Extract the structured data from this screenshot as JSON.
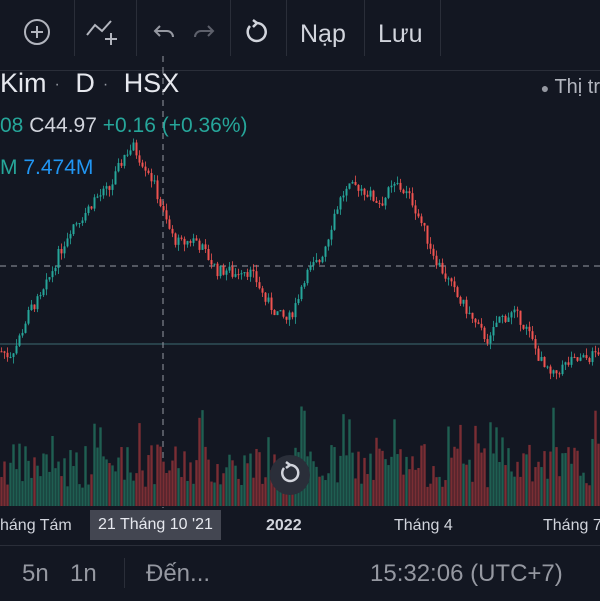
{
  "toolbar": {
    "add_label": "Thêm",
    "undo_label": "Hoàn tác",
    "load_label": "Nạp",
    "save_label": "Lưu"
  },
  "symbol": {
    "name": "Kim",
    "interval": "D",
    "exchange": "HSX",
    "market_status": "Thị tr"
  },
  "legend": {
    "ohlc_prefix": "08",
    "close": "C44.97",
    "change": "+0.16 (+0.36%)",
    "volume_prefix": "M",
    "volume": "7.474M"
  },
  "time_axis": {
    "labels": [
      "háng Tám",
      "2022",
      "Tháng 4",
      "Tháng 7"
    ],
    "crosshair_date": "21 Tháng 10 '21"
  },
  "bottom_bar": {
    "range_5d": "5n",
    "range_1d": "1n",
    "goto": "Đến...",
    "clock": "15:32:06 (UTC+7)"
  },
  "colors": {
    "background": "#131722",
    "up": "#26a69a",
    "down": "#ef5350",
    "volume_up": "#1f5f52",
    "volume_down": "#7a2e34",
    "crosshair": "#9598a1"
  },
  "chart_data": {
    "type": "candlestick",
    "title": "",
    "x_start": "2021-08-09",
    "x_end": "2022-07-20",
    "close_path": [
      30.5,
      30.2,
      31,
      32.5,
      33.8,
      34.2,
      35.5,
      37,
      38.2,
      39.5,
      40,
      40.6,
      41.5,
      41.8,
      42.2,
      43.5,
      44.8,
      45.2,
      44.3,
      43.5,
      42,
      40.2,
      38.8,
      38.2,
      38.4,
      38.6,
      37.8,
      37,
      36.2,
      36.4,
      36,
      36.5,
      36.2,
      35.5,
      34.2,
      33.6,
      33,
      32.7,
      34,
      35.8,
      36.5,
      37,
      38.5,
      40.5,
      41.8,
      42.2,
      42.4,
      42,
      41.5,
      41.2,
      42,
      42.5,
      42,
      41.3,
      40,
      38.5,
      37.2,
      36.2,
      35.2,
      34.2,
      33.5,
      32.5,
      31.8,
      31.2,
      32.8,
      33,
      33.2,
      32.8,
      31.8,
      30.5,
      29.3,
      28.6,
      29.2,
      29.6,
      29.8,
      29.9,
      30.1,
      30.5
    ]
  }
}
